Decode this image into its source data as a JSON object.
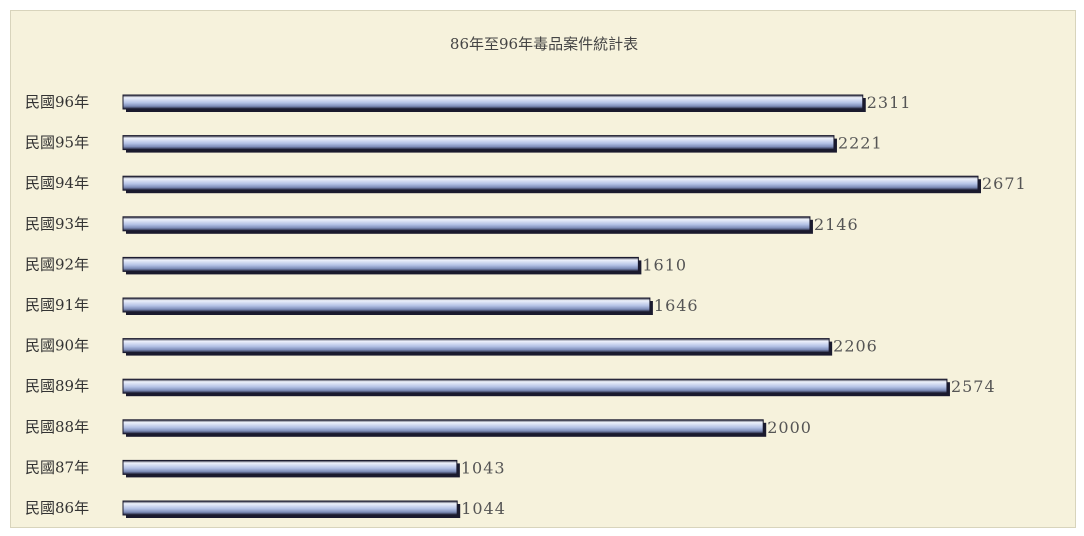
{
  "chart_data": {
    "type": "bar",
    "orientation": "horizontal",
    "title": "86年至96年毒品案件統計表",
    "xlabel": "",
    "ylabel": "",
    "xlim": [
      0,
      2800
    ],
    "grid": false,
    "legend": "none",
    "categories": [
      "民國96年",
      "民國95年",
      "民國94年",
      "民國93年",
      "民國92年",
      "民國91年",
      "民國90年",
      "民國89年",
      "民國88年",
      "民國87年",
      "民國86年"
    ],
    "values": [
      2311,
      2221,
      2671,
      2146,
      1610,
      1646,
      2206,
      2574,
      2000,
      1043,
      1044
    ],
    "colors": {
      "bar_light": "#eef2fc",
      "bar_mid": "#b4c2e6",
      "bar_dark": "#1a1a2e",
      "background": "#f6f2dc"
    }
  }
}
